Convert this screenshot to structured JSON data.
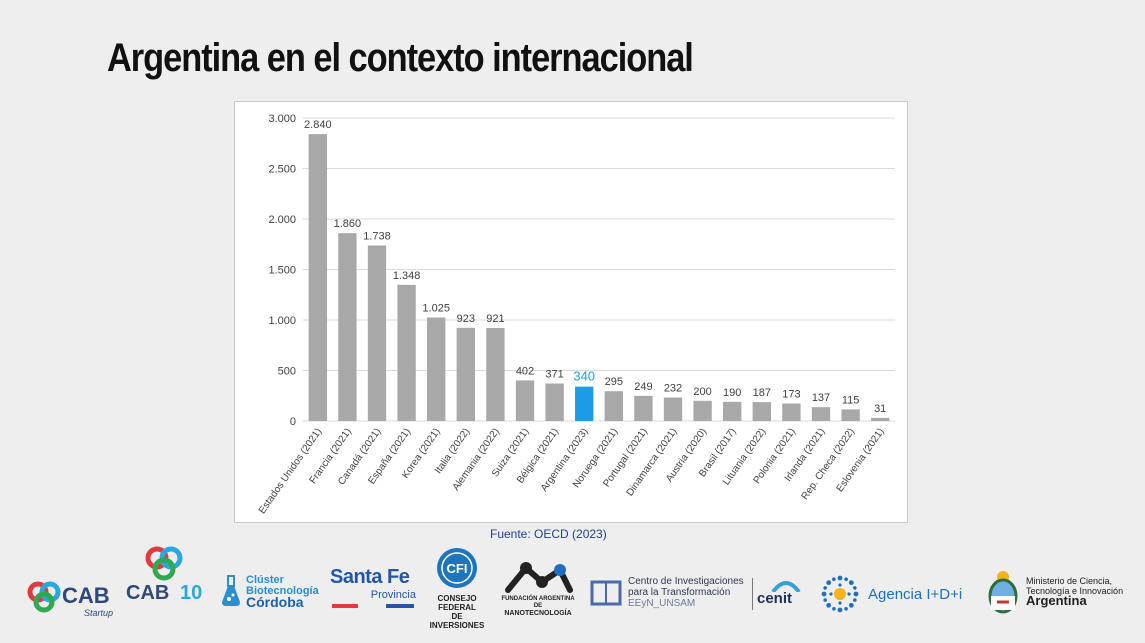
{
  "slide": {
    "title": "Argentina en el contexto internacional",
    "source": "Fuente: OECD (2023)"
  },
  "colors": {
    "bar": "#a8a8a8",
    "highlight_bar": "#1e9be6",
    "highlight_label": "#1e9be6",
    "grid": "#d9d9d9",
    "axis_text": "#404040"
  },
  "chart_data": {
    "type": "bar",
    "categories": [
      "Estados Unidos (2021)",
      "Francia (2021)",
      "Canadá (2021)",
      "España (2021)",
      "Korea (2021)",
      "Italia (2022)",
      "Alemania (2022)",
      "Suiza (2021)",
      "Bélgica (2021)",
      "Argentina (2023)",
      "Noruega (2021)",
      "Portugal (2021)",
      "Dinamarca (2021)",
      "Austria (2020)",
      "Brasil (2017)",
      "Lituania (2022)",
      "Polonia (2021)",
      "Irlanda (2021)",
      "Rep. Checa (2022)",
      "Eslovenia (2021)"
    ],
    "values": [
      2840,
      1860,
      1738,
      1348,
      1025,
      923,
      921,
      402,
      371,
      340,
      295,
      249,
      232,
      200,
      190,
      187,
      173,
      137,
      115,
      31
    ],
    "value_labels": [
      "2.840",
      "1.860",
      "1.738",
      "1.348",
      "1.025",
      "923",
      "921",
      "402",
      "371",
      "340",
      "295",
      "249",
      "232",
      "200",
      "190",
      "187",
      "173",
      "137",
      "115",
      "31"
    ],
    "highlight_index": 9,
    "ylim": [
      0,
      3000
    ],
    "yticks": [
      0,
      500,
      1000,
      1500,
      2000,
      2500,
      3000
    ],
    "ytick_labels": [
      "0",
      "500",
      "1.000",
      "1.500",
      "2.000",
      "2.500",
      "3.000"
    ],
    "grid": true,
    "title": "",
    "xlabel": "",
    "ylabel": ""
  },
  "logos": {
    "cab_startup": {
      "name": "CAB",
      "tagline": "Startup",
      "icon": "cab-knot-icon"
    },
    "cab_10": {
      "name": "CAB",
      "badge": "10",
      "icon": "cab-knot-icon"
    },
    "cluster": {
      "line1": "Clúster",
      "line2": "Biotecnología",
      "line3": "Córdoba",
      "icon": "flask-icon"
    },
    "santa_fe": {
      "line1": "Santa Fe",
      "line2": "Provincia"
    },
    "cfi": {
      "badge": "CFI",
      "line1": "CONSEJO FEDERAL",
      "line2": "DE INVERSIONES",
      "icon": "cfi-seal-icon"
    },
    "nano": {
      "line1": "FUNDACIÓN ARGENTINA DE",
      "line2": "NANOTECNOLOGÍA",
      "icon": "molecule-icon"
    },
    "cit": {
      "line1": "Centro de Investigaciones",
      "line2": "para la Transformación",
      "line3": "EEyN_UNSAM",
      "icon": "book-icon"
    },
    "cenit": {
      "name": "cenit",
      "icon": "cenit-arc-icon"
    },
    "agencia": {
      "name": "Agencia I+D+i",
      "icon": "dotted-sun-icon"
    },
    "ministerio": {
      "line1": "Ministerio de Ciencia,",
      "line2": "Tecnología e Innovación",
      "line3": "Argentina",
      "icon": "coat-of-arms-icon"
    }
  }
}
